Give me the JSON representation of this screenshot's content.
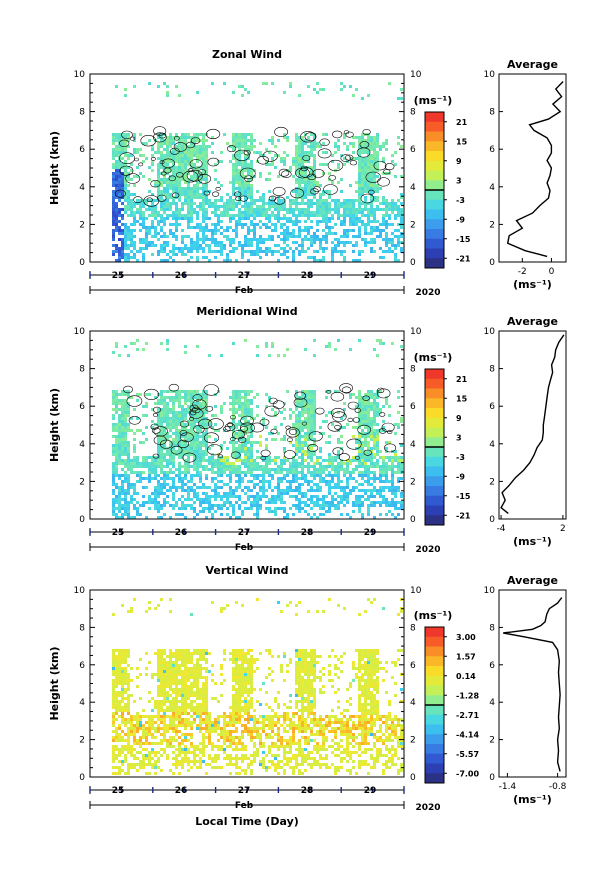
{
  "chart_data": [
    {
      "type": "heatmap",
      "title": "Zonal Wind",
      "ylabel": "Height (km)",
      "ylim": [
        0,
        10
      ],
      "yticks": [
        "0",
        "2",
        "4",
        "6",
        "8",
        "10"
      ],
      "xticks": [
        "25",
        "26",
        "27",
        "28",
        "29"
      ],
      "xunit_label": "Feb",
      "year_label": "2020",
      "colorbar": {
        "unit": "(ms⁻¹)",
        "ticks": [
          "21",
          "15",
          "9",
          "3",
          "-3",
          "-9",
          "-15",
          "-21"
        ],
        "range": [
          -24,
          24
        ]
      },
      "profile": {
        "title": "Average",
        "xlabel": "(ms⁻¹)",
        "xticks": [
          "-2",
          "0"
        ],
        "xlim": [
          -3.6,
          1.0
        ],
        "height": [
          0.3,
          0.6,
          1.0,
          1.4,
          1.8,
          2.2,
          2.6,
          3.0,
          3.4,
          3.8,
          4.2,
          4.6,
          5.0,
          5.4,
          5.8,
          6.2,
          6.6,
          7.0,
          7.3,
          7.6,
          8.0,
          8.4,
          8.8,
          9.2,
          9.6
        ],
        "values": [
          -0.3,
          -1.8,
          -3.0,
          -2.9,
          -2.0,
          -2.4,
          -1.3,
          -0.8,
          -0.2,
          -0.1,
          -0.3,
          -0.1,
          0.0,
          -0.3,
          0.0,
          0.0,
          -0.3,
          -1.2,
          -1.5,
          -0.2,
          0.6,
          0.1,
          0.7,
          0.3,
          0.8
        ]
      }
    },
    {
      "type": "heatmap",
      "title": "Meridional Wind",
      "ylabel": "Height (km)",
      "ylim": [
        0,
        10
      ],
      "yticks": [
        "0",
        "2",
        "4",
        "6",
        "8",
        "10"
      ],
      "xticks": [
        "25",
        "26",
        "27",
        "28",
        "29"
      ],
      "xunit_label": "Feb",
      "year_label": "2020",
      "colorbar": {
        "unit": "(ms⁻¹)",
        "ticks": [
          "21",
          "15",
          "9",
          "3",
          "-3",
          "-9",
          "-15",
          "-21"
        ],
        "range": [
          -24,
          24
        ]
      },
      "profile": {
        "title": "Average",
        "xlabel": "(ms⁻¹)",
        "xticks": [
          "-4",
          "2"
        ],
        "xlim": [
          -4.2,
          2.3
        ],
        "height": [
          0.3,
          0.6,
          1.0,
          1.4,
          1.8,
          2.2,
          2.6,
          3.0,
          3.4,
          3.8,
          4.2,
          4.6,
          5.0,
          5.4,
          5.8,
          6.2,
          6.6,
          7.0,
          7.4,
          7.8,
          8.2,
          8.6,
          9.0,
          9.4,
          9.8
        ],
        "values": [
          -3.3,
          -4.0,
          -3.6,
          -3.9,
          -3.2,
          -2.6,
          -1.8,
          -1.2,
          -0.8,
          -0.5,
          0.0,
          0.1,
          0.1,
          0.2,
          0.3,
          0.4,
          0.5,
          0.6,
          0.8,
          1.0,
          0.9,
          1.2,
          1.3,
          1.6,
          2.1
        ]
      }
    },
    {
      "type": "heatmap",
      "title": "Vertical Wind",
      "ylabel": "Height (km)",
      "xlabel": "Local Time (Day)",
      "ylim": [
        0,
        10
      ],
      "yticks": [
        "0",
        "2",
        "4",
        "6",
        "8",
        "10"
      ],
      "xticks": [
        "25",
        "26",
        "27",
        "28",
        "29"
      ],
      "xunit_label": "Feb",
      "year_label": "2020",
      "colorbar": {
        "unit": "(ms⁻¹)",
        "ticks": [
          "3.00",
          "1.57",
          "0.14",
          "-1.28",
          "-2.71",
          "-4.14",
          "-5.57",
          "-7.00"
        ],
        "range": [
          -7.7,
          3.7
        ]
      },
      "profile": {
        "title": "Average",
        "xlabel": "(ms⁻¹)",
        "xticks": [
          "-1.4",
          "-0.8"
        ],
        "xlim": [
          -1.5,
          -0.7
        ],
        "height": [
          0.3,
          0.8,
          1.4,
          2.0,
          2.6,
          3.2,
          3.8,
          4.4,
          5.0,
          5.6,
          6.2,
          6.8,
          7.2,
          7.5,
          7.7,
          7.9,
          8.1,
          8.3,
          8.7,
          9.0,
          9.3,
          9.6
        ],
        "values": [
          -0.77,
          -0.8,
          -0.79,
          -0.8,
          -0.78,
          -0.79,
          -0.78,
          -0.77,
          -0.78,
          -0.79,
          -0.78,
          -0.8,
          -0.86,
          -1.2,
          -1.45,
          -1.1,
          -1.0,
          -0.95,
          -0.93,
          -0.9,
          -0.8,
          -0.75
        ]
      }
    }
  ]
}
